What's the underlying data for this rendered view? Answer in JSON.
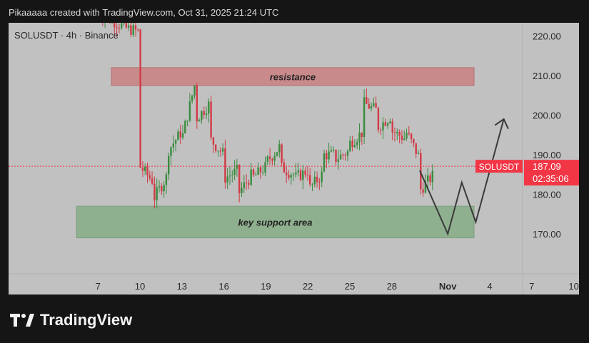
{
  "header": {
    "credit": "Pikaaaaa created with TradingView.com, Oct 31, 2025 21:24 UTC"
  },
  "symbol": {
    "label": "SOLUSDT · 4h · Binance"
  },
  "price_tag": {
    "name": "SOLUSDT",
    "price": "187.09",
    "countdown": "02:35:06",
    "color": "#f23645"
  },
  "brand": {
    "logo_text": "TradingView"
  },
  "colors": {
    "up": "#3a8c3f",
    "down": "#d23a46",
    "resistance_fill": "#c98a8c",
    "support_fill": "#8fb08f",
    "background": "#c1c1c1",
    "arrow": "#3a3a3a"
  },
  "chart_data": {
    "type": "candlestick",
    "instrument": "SOLUSDT",
    "timeframe": "4h",
    "exchange": "Binance",
    "y_ticks": [
      220,
      210,
      200,
      190,
      180,
      170
    ],
    "y_tick_labels": [
      "220.00",
      "210.00",
      "200.00",
      "190.00",
      "180.00",
      "170.00"
    ],
    "x_tick_labels": [
      "7",
      "10",
      "13",
      "16",
      "19",
      "22",
      "25",
      "28",
      "Nov",
      "4",
      "7",
      "10"
    ],
    "ylim": [
      162.5,
      225
    ],
    "last_price": 187.09,
    "zones": [
      {
        "label": "resistance",
        "from": 207.5,
        "to": 212.0
      },
      {
        "label": "key support area",
        "from": 169.0,
        "to": 177.0
      }
    ],
    "projection_path": [
      {
        "date": "Oct 30",
        "price": 186
      },
      {
        "date": "Nov 1",
        "price": 170
      },
      {
        "date": "Nov 2",
        "price": 183
      },
      {
        "date": "Nov 3",
        "price": 173
      },
      {
        "date": "Nov 5",
        "price": 199
      }
    ],
    "price_path": [
      {
        "date": "Oct 7",
        "price": 226
      },
      {
        "date": "Oct 8",
        "price": 224
      },
      {
        "date": "Oct 9",
        "price": 222
      },
      {
        "date": "Oct 10",
        "price": 221
      },
      {
        "date": "Oct 10",
        "price": 200
      },
      {
        "date": "Oct 10",
        "price": 187
      },
      {
        "date": "Oct 11",
        "price": 183
      },
      {
        "date": "Oct 11",
        "price": 179
      },
      {
        "date": "Oct 12",
        "price": 185
      },
      {
        "date": "Oct 12",
        "price": 191
      },
      {
        "date": "Oct 13",
        "price": 196
      },
      {
        "date": "Oct 13",
        "price": 194
      },
      {
        "date": "Oct 14",
        "price": 209
      },
      {
        "date": "Oct 14",
        "price": 199
      },
      {
        "date": "Oct 15",
        "price": 203
      },
      {
        "date": "Oct 15",
        "price": 194
      },
      {
        "date": "Oct 16",
        "price": 190
      },
      {
        "date": "Oct 16",
        "price": 184
      },
      {
        "date": "Oct 17",
        "price": 186
      },
      {
        "date": "Oct 17",
        "price": 180
      },
      {
        "date": "Oct 18",
        "price": 185
      },
      {
        "date": "Oct 18",
        "price": 184
      },
      {
        "date": "Oct 19",
        "price": 187
      },
      {
        "date": "Oct 19",
        "price": 188
      },
      {
        "date": "Oct 20",
        "price": 192
      },
      {
        "date": "Oct 20",
        "price": 187
      },
      {
        "date": "Oct 21",
        "price": 185
      },
      {
        "date": "Oct 21",
        "price": 184
      },
      {
        "date": "Oct 22",
        "price": 186
      },
      {
        "date": "Oct 22",
        "price": 181
      },
      {
        "date": "Oct 23",
        "price": 185
      },
      {
        "date": "Oct 23",
        "price": 190
      },
      {
        "date": "Oct 24",
        "price": 190
      },
      {
        "date": "Oct 24",
        "price": 189
      },
      {
        "date": "Oct 25",
        "price": 191
      },
      {
        "date": "Oct 25",
        "price": 193
      },
      {
        "date": "Oct 26",
        "price": 196
      },
      {
        "date": "Oct 26",
        "price": 203
      },
      {
        "date": "Oct 27",
        "price": 201
      },
      {
        "date": "Oct 27",
        "price": 197
      },
      {
        "date": "Oct 28",
        "price": 200
      },
      {
        "date": "Oct 28",
        "price": 196
      },
      {
        "date": "Oct 29",
        "price": 194
      },
      {
        "date": "Oct 29",
        "price": 196
      },
      {
        "date": "Oct 30",
        "price": 189
      },
      {
        "date": "Oct 30",
        "price": 181
      },
      {
        "date": "Oct 31",
        "price": 185
      },
      {
        "date": "Oct 31",
        "price": 187.09
      }
    ]
  }
}
